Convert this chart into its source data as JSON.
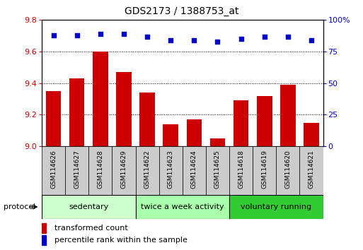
{
  "title": "GDS2173 / 1388753_at",
  "samples": [
    "GSM114626",
    "GSM114627",
    "GSM114628",
    "GSM114629",
    "GSM114622",
    "GSM114623",
    "GSM114624",
    "GSM114625",
    "GSM114618",
    "GSM114619",
    "GSM114620",
    "GSM114621"
  ],
  "transformed_count": [
    9.35,
    9.43,
    9.6,
    9.47,
    9.34,
    9.14,
    9.17,
    9.05,
    9.29,
    9.32,
    9.39,
    9.15
  ],
  "percentile_rank": [
    88,
    88,
    89,
    89,
    87,
    84,
    84,
    83,
    85,
    87,
    87,
    84
  ],
  "bar_color": "#cc0000",
  "dot_color": "#0000cc",
  "ylim_left": [
    9.0,
    9.8
  ],
  "ylim_right": [
    0,
    100
  ],
  "yticks_left": [
    9.0,
    9.2,
    9.4,
    9.6,
    9.8
  ],
  "yticks_right": [
    0,
    25,
    50,
    75,
    100
  ],
  "groups": [
    {
      "label": "sedentary",
      "start": 0,
      "end": 4,
      "color": "#ccffcc"
    },
    {
      "label": "twice a week activity",
      "start": 4,
      "end": 8,
      "color": "#aaffaa"
    },
    {
      "label": "voluntary running",
      "start": 8,
      "end": 12,
      "color": "#33cc33"
    }
  ],
  "protocol_label": "protocol",
  "legend_bar_label": "transformed count",
  "legend_dot_label": "percentile rank within the sample",
  "tick_bg_color": "#cccccc",
  "title_fontsize": 10,
  "axis_fontsize": 8,
  "label_fontsize": 6.5,
  "group_fontsize": 8,
  "legend_fontsize": 8
}
